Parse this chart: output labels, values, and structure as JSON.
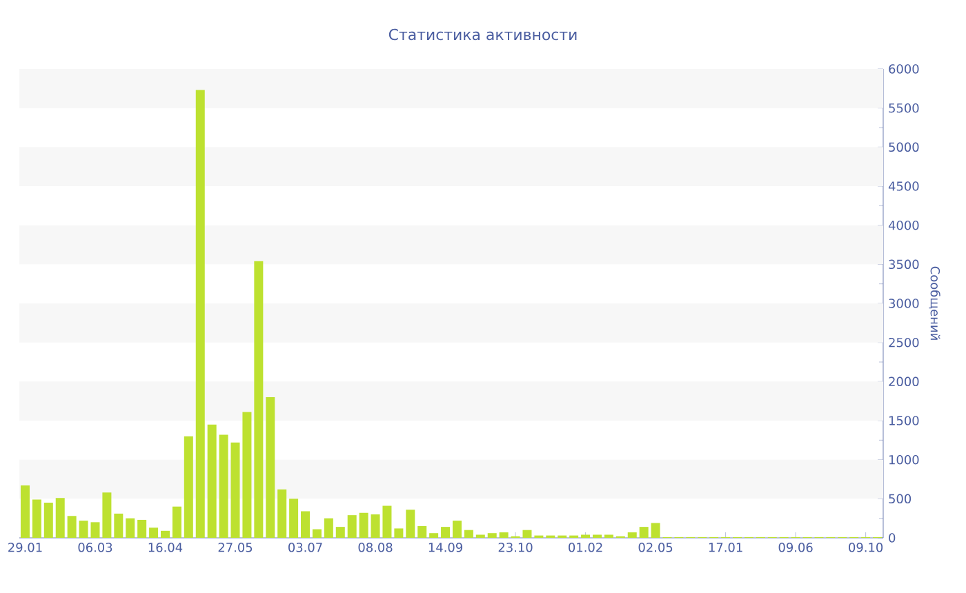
{
  "chart_data": {
    "type": "bar",
    "title": "Статистика активности",
    "ylabel": "Сообщений",
    "categories": [
      "29.01",
      null,
      null,
      null,
      null,
      null,
      "06.03",
      null,
      null,
      null,
      null,
      null,
      "16.04",
      null,
      null,
      null,
      null,
      null,
      "27.05",
      null,
      null,
      null,
      null,
      null,
      "03.07",
      null,
      null,
      null,
      null,
      null,
      "08.08",
      null,
      null,
      null,
      null,
      null,
      "14.09",
      null,
      null,
      null,
      null,
      null,
      "23.10",
      null,
      null,
      null,
      null,
      null,
      "01.02",
      null,
      null,
      null,
      null,
      null,
      "02.05",
      null,
      null,
      null,
      null,
      null,
      "17.01",
      null,
      null,
      null,
      null,
      null,
      "09.06",
      null,
      null,
      null,
      null,
      null,
      "09.10",
      null
    ],
    "values": [
      670,
      490,
      450,
      510,
      280,
      220,
      200,
      580,
      310,
      250,
      230,
      130,
      90,
      400,
      1300,
      5730,
      1450,
      1320,
      1220,
      1610,
      3540,
      1800,
      620,
      500,
      340,
      110,
      250,
      140,
      290,
      320,
      300,
      410,
      120,
      360,
      150,
      60,
      140,
      220,
      100,
      40,
      60,
      70,
      20,
      100,
      30,
      30,
      30,
      30,
      40,
      40,
      40,
      20,
      70,
      140,
      190,
      10,
      10,
      10,
      10,
      10,
      10,
      10,
      10,
      10,
      10,
      10,
      10,
      10,
      10,
      10,
      10,
      10,
      10,
      10
    ],
    "color": "#bde130",
    "ylim": [
      0,
      6000
    ],
    "yticks": [
      0,
      500,
      1000,
      1500,
      2000,
      2500,
      3000,
      3500,
      4000,
      4500,
      5000,
      5500,
      6000
    ],
    "bands": [
      {
        "axis": "y",
        "from": 500,
        "to": 1000,
        "color": "#f7f7f7"
      },
      {
        "axis": "y",
        "from": 1500,
        "to": 2000,
        "color": "#f7f7f7"
      },
      {
        "axis": "y",
        "from": 2500,
        "to": 3000,
        "color": "#f7f7f7"
      },
      {
        "axis": "y",
        "from": 3500,
        "to": 4000,
        "color": "#f7f7f7"
      },
      {
        "axis": "y",
        "from": 4500,
        "to": 5000,
        "color": "#f7f7f7"
      },
      {
        "axis": "y",
        "from": 5500,
        "to": 6000,
        "color": "#f7f7f7"
      }
    ]
  }
}
